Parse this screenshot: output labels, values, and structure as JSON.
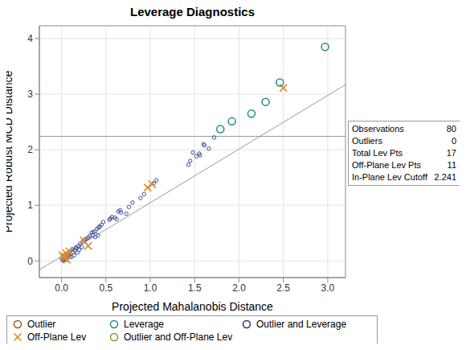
{
  "chart_data": {
    "type": "scatter",
    "title": "Leverage Diagnostics",
    "x_label": "Projected Mahalanobis Distance",
    "y_label": "Projected Robust MCD Distance",
    "xlim": [
      -0.25,
      3.2
    ],
    "ylim": [
      -0.3,
      4.23
    ],
    "xticks": [
      {
        "value": 0,
        "label": "0.0"
      },
      0.5,
      {
        "value": 1,
        "label": "1.0"
      },
      1.5,
      {
        "value": 2,
        "label": "2.0"
      },
      2.5,
      {
        "value": 3,
        "label": "3.0"
      }
    ],
    "yticks": [
      0,
      1,
      2,
      3,
      4
    ],
    "grid": true,
    "legend": "bottom",
    "cutoff": 2.241,
    "diagonal": {
      "x": [
        -0.25,
        3.2
      ],
      "y": [
        -0.16,
        3.17
      ]
    },
    "statistics": [
      {
        "label": "Observations",
        "value": 80
      },
      {
        "label": "Outliers",
        "value": 0
      },
      {
        "label": "Total Lev Pts",
        "value": 17
      },
      {
        "label": "Off-Plane Lev Pts",
        "value": 11
      },
      {
        "label": "In-Plane Lev Cutoff",
        "value": 2.241
      }
    ],
    "series": [
      {
        "name": "Outlier",
        "color": "#a0522d",
        "marker": "circle",
        "x": [],
        "y": []
      },
      {
        "name": "Leverage",
        "color": "#1f8a8a",
        "marker": "circle",
        "x": [
          2.97,
          2.46,
          2.3,
          2.14,
          1.92,
          1.79
        ],
        "y": [
          3.85,
          3.21,
          2.86,
          2.65,
          2.51,
          2.37
        ]
      },
      {
        "name": "Outlier and Leverage",
        "color": "#2b2b6b",
        "marker": "circle",
        "x": [],
        "y": []
      },
      {
        "name": "Off-Plane Lev",
        "color": "#d98b2b",
        "marker": "x",
        "x": [
          2.5,
          0.97,
          1.02,
          0.25,
          0.3,
          0.01,
          0.05,
          0.06,
          0.04,
          0.09,
          0.03
        ],
        "y": [
          3.11,
          1.32,
          1.38,
          0.37,
          0.27,
          0.1,
          0.14,
          0.02,
          0.07,
          0.17,
          0.05
        ]
      },
      {
        "name": "Outlier and Off-Plane Lev",
        "color": "#8f8f2a",
        "marker": "circle",
        "x": [],
        "y": []
      },
      {
        "color": "#3f4fa0",
        "marker": "circle",
        "x": [
          1.72,
          1.66,
          1.6,
          1.61,
          1.55,
          1.52,
          1.48,
          1.43,
          1.56,
          1.07,
          1.04,
          0.93,
          0.89,
          0.8,
          0.76,
          0.73,
          0.66,
          0.64,
          0.62,
          0.6,
          0.57,
          0.54,
          0.47,
          0.43,
          0.42,
          0.4,
          0.38,
          0.41,
          0.38,
          0.35,
          0.34,
          0.32,
          0.3,
          0.28,
          0.26,
          0.24,
          0.21,
          0.19,
          0.23,
          0.2,
          0.17,
          0.15,
          0.13,
          0.12,
          0.1,
          0.09,
          0.08,
          0.07,
          0.06,
          0.05,
          0.04,
          0.03,
          0.02,
          0.11,
          0.14,
          0.16,
          0.45,
          0.55,
          0.67,
          1.45,
          0.36,
          0.18,
          0.01
        ],
        "y": [
          2.22,
          2.02,
          2.1,
          2.08,
          1.93,
          1.88,
          1.95,
          1.73,
          1.9,
          1.45,
          1.4,
          1.2,
          1.13,
          1.05,
          0.97,
          0.85,
          0.91,
          0.89,
          0.75,
          0.78,
          0.79,
          0.74,
          0.7,
          0.62,
          0.6,
          0.58,
          0.53,
          0.46,
          0.43,
          0.46,
          0.51,
          0.45,
          0.42,
          0.4,
          0.38,
          0.35,
          0.31,
          0.27,
          0.25,
          0.2,
          0.23,
          0.19,
          0.16,
          0.21,
          0.13,
          0.08,
          0.11,
          0.06,
          0.09,
          0.02,
          0.04,
          0.03,
          0.01,
          0.07,
          0.1,
          0.24,
          0.65,
          0.76,
          0.87,
          1.8,
          0.52,
          0.15,
          0.02
        ]
      }
    ]
  }
}
